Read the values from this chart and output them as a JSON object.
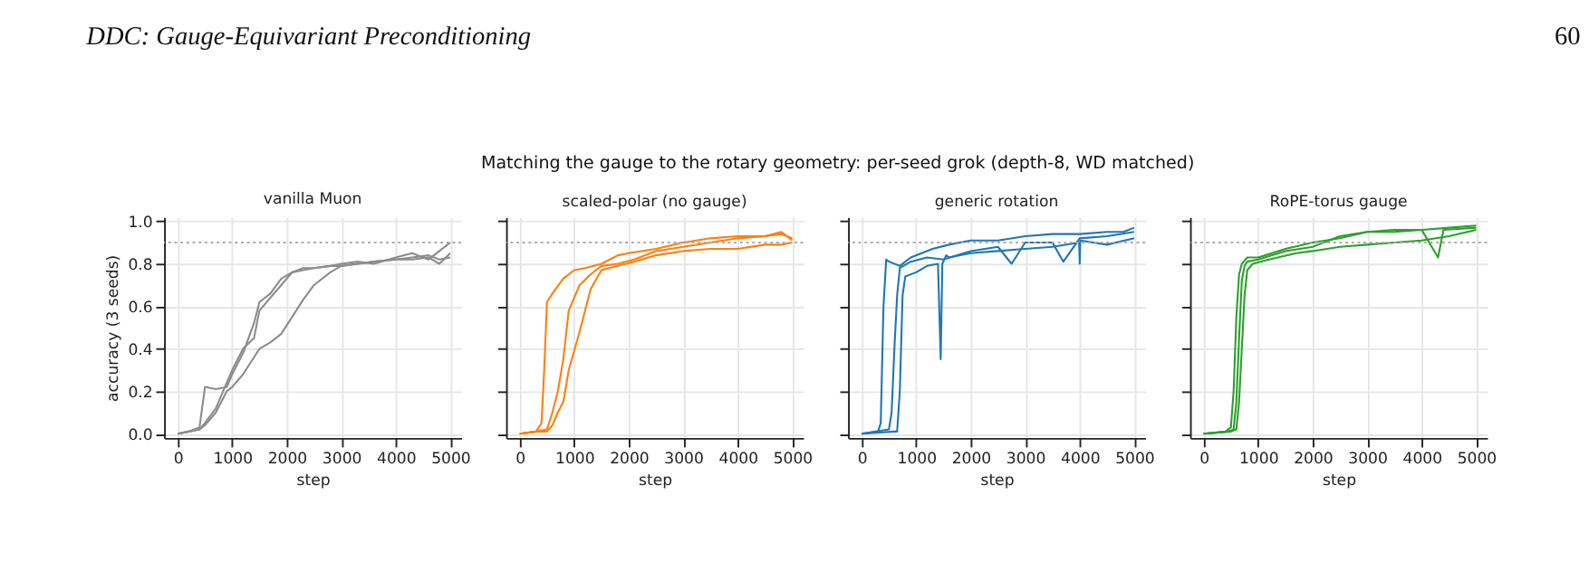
{
  "chart_data": [
    {
      "type": "line",
      "title": "vanilla Muon",
      "xlabel": "step",
      "ylabel": "accuracy (3 seeds)",
      "annotations": [
        "DDC: Gauge-Equivariant Preconditioning",
        "60",
        "Matching the gauge to the rotary geometry: per-seed grok (depth-8, WD matched)"
      ],
      "xlim": [
        -250,
        5200
      ],
      "xticks": [
        0,
        1000,
        2000,
        3000,
        4000,
        5000
      ],
      "ylim": [
        -0.02,
        1.02
      ],
      "yticks": [
        {
          "value": 0,
          "label": "0.0"
        },
        0.2,
        0.4,
        0.6,
        0.8,
        {
          "value": 1,
          "label": "1.0"
        }
      ],
      "grid": true,
      "line_style": "solid",
      "ref_lines": [
        {
          "axis": "y",
          "value": 0.9,
          "color": "#aaaaaa",
          "line_style": "dotted"
        }
      ],
      "series": [
        {
          "color": "#8c8c8c",
          "x": [
            0,
            200,
            400,
            500,
            700,
            900,
            1000,
            1200,
            1400,
            1500,
            1700,
            1900,
            2100,
            2300,
            2500,
            2800,
            3000,
            3300,
            3600,
            4000,
            4300,
            4600,
            4800,
            5000
          ],
          "values": [
            0,
            0.01,
            0.03,
            0.22,
            0.21,
            0.22,
            0.28,
            0.38,
            0.52,
            0.62,
            0.66,
            0.73,
            0.76,
            0.77,
            0.78,
            0.79,
            0.79,
            0.8,
            0.81,
            0.82,
            0.83,
            0.84,
            0.82,
            0.83
          ]
        },
        {
          "color": "#8c8c8c",
          "x": [
            0,
            200,
            400,
            500,
            700,
            900,
            1000,
            1200,
            1400,
            1500,
            1700,
            1900,
            2100,
            2300,
            2500,
            2800,
            3000,
            3300,
            3600,
            4000,
            4300,
            4600,
            4800,
            5000
          ],
          "values": [
            0,
            0.01,
            0.02,
            0.05,
            0.12,
            0.24,
            0.3,
            0.4,
            0.45,
            0.58,
            0.64,
            0.7,
            0.76,
            0.78,
            0.78,
            0.79,
            0.8,
            0.81,
            0.8,
            0.83,
            0.85,
            0.82,
            0.86,
            0.9
          ]
        },
        {
          "color": "#8c8c8c",
          "x": [
            0,
            200,
            400,
            500,
            700,
            900,
            1000,
            1200,
            1400,
            1500,
            1700,
            1900,
            2100,
            2300,
            2500,
            2800,
            3000,
            3300,
            3600,
            4000,
            4300,
            4600,
            4800,
            5000
          ],
          "values": [
            0,
            0.01,
            0.02,
            0.04,
            0.1,
            0.2,
            0.22,
            0.28,
            0.36,
            0.4,
            0.43,
            0.47,
            0.55,
            0.63,
            0.7,
            0.76,
            0.79,
            0.8,
            0.81,
            0.82,
            0.82,
            0.83,
            0.8,
            0.85
          ]
        }
      ]
    },
    {
      "type": "line",
      "title": "scaled-polar (no gauge)",
      "xlabel": "step",
      "tick_labels": "x",
      "xlim": [
        -250,
        5200
      ],
      "xticks": [
        0,
        1000,
        2000,
        3000,
        4000,
        5000
      ],
      "ylim": [
        -0.02,
        1.02
      ],
      "yticks": [
        0,
        0.2,
        0.4,
        0.6,
        0.8,
        1
      ],
      "grid": true,
      "line_style": "solid",
      "ref_lines": [
        {
          "axis": "y",
          "value": 0.9,
          "color": "#aaaaaa",
          "line_style": "dotted"
        }
      ],
      "series": [
        {
          "color": "#ff7f0e",
          "x": [
            0,
            300,
            400,
            450,
            500,
            600,
            800,
            1000,
            1200,
            1500,
            1800,
            2000,
            2500,
            3000,
            3500,
            4000,
            4500,
            4800,
            5000
          ],
          "values": [
            0,
            0.01,
            0.05,
            0.3,
            0.62,
            0.66,
            0.73,
            0.77,
            0.78,
            0.8,
            0.84,
            0.85,
            0.87,
            0.9,
            0.92,
            0.93,
            0.93,
            0.95,
            0.91
          ]
        },
        {
          "color": "#ff7f0e",
          "x": [
            0,
            300,
            500,
            600,
            700,
            800,
            900,
            1100,
            1300,
            1500,
            1800,
            2100,
            2500,
            3000,
            3500,
            4000,
            4500,
            4800,
            5000
          ],
          "values": [
            0,
            0.01,
            0.02,
            0.1,
            0.2,
            0.35,
            0.58,
            0.7,
            0.75,
            0.79,
            0.8,
            0.82,
            0.86,
            0.88,
            0.9,
            0.92,
            0.93,
            0.94,
            0.92
          ]
        },
        {
          "color": "#ff7f0e",
          "x": [
            0,
            300,
            500,
            600,
            700,
            800,
            900,
            1100,
            1300,
            1500,
            1800,
            2100,
            2500,
            3000,
            3500,
            4000,
            4500,
            4800,
            5000
          ],
          "values": [
            0,
            0.01,
            0.01,
            0.04,
            0.1,
            0.15,
            0.3,
            0.48,
            0.68,
            0.77,
            0.79,
            0.81,
            0.84,
            0.86,
            0.87,
            0.87,
            0.89,
            0.89,
            0.9
          ]
        }
      ]
    },
    {
      "type": "line",
      "title": "generic rotation",
      "xlabel": "step",
      "tick_labels": "x",
      "xlim": [
        -250,
        5200
      ],
      "xticks": [
        0,
        1000,
        2000,
        3000,
        4000,
        5000
      ],
      "ylim": [
        -0.02,
        1.02
      ],
      "yticks": [
        0,
        0.2,
        0.4,
        0.6,
        0.8,
        1
      ],
      "grid": true,
      "line_style": "solid",
      "ref_lines": [
        {
          "axis": "y",
          "value": 0.9,
          "color": "#aaaaaa",
          "line_style": "dotted"
        }
      ],
      "series": [
        {
          "color": "#1f77b4",
          "x": [
            0,
            300,
            350,
            400,
            450,
            500,
            700,
            900,
            1100,
            1300,
            1600,
            2000,
            2500,
            3000,
            3500,
            4000,
            4500,
            4800,
            5000
          ],
          "values": [
            0,
            0.01,
            0.05,
            0.6,
            0.82,
            0.81,
            0.79,
            0.83,
            0.85,
            0.87,
            0.89,
            0.91,
            0.91,
            0.93,
            0.94,
            0.94,
            0.95,
            0.95,
            0.97
          ]
        },
        {
          "color": "#1f77b4",
          "x": [
            0,
            500,
            550,
            600,
            650,
            700,
            900,
            1200,
            1500,
            2000,
            2500,
            2750,
            3000,
            3500,
            3700,
            4000,
            4500,
            5000
          ],
          "values": [
            0,
            0.02,
            0.1,
            0.4,
            0.65,
            0.78,
            0.81,
            0.83,
            0.82,
            0.86,
            0.88,
            0.8,
            0.9,
            0.9,
            0.81,
            0.92,
            0.93,
            0.95
          ]
        },
        {
          "color": "#1f77b4",
          "x": [
            0,
            600,
            650,
            700,
            750,
            800,
            1000,
            1200,
            1400,
            1450,
            1480,
            1550,
            1600,
            2000,
            2500,
            3000,
            3500,
            3990,
            4000,
            4010,
            4500,
            5000
          ],
          "values": [
            0,
            0.01,
            0.01,
            0.2,
            0.65,
            0.74,
            0.76,
            0.79,
            0.8,
            0.35,
            0.8,
            0.84,
            0.83,
            0.85,
            0.86,
            0.87,
            0.88,
            0.9,
            0.8,
            0.91,
            0.89,
            0.92
          ]
        }
      ]
    },
    {
      "type": "line",
      "title": "RoPE-torus gauge",
      "xlabel": "step",
      "tick_labels": "x",
      "xlim": [
        -250,
        5200
      ],
      "xticks": [
        0,
        1000,
        2000,
        3000,
        4000,
        5000
      ],
      "ylim": [
        -0.02,
        1.02
      ],
      "yticks": [
        0,
        0.2,
        0.4,
        0.6,
        0.8,
        1
      ],
      "grid": true,
      "line_style": "solid",
      "ref_lines": [
        {
          "axis": "y",
          "value": 0.9,
          "color": "#aaaaaa",
          "line_style": "dotted"
        }
      ],
      "series": [
        {
          "color": "#2ca02c",
          "x": [
            0,
            400,
            500,
            550,
            600,
            650,
            700,
            800,
            1000,
            1500,
            2000,
            2500,
            3000,
            3500,
            4000,
            4500,
            5000
          ],
          "values": [
            0,
            0.01,
            0.03,
            0.2,
            0.55,
            0.75,
            0.8,
            0.83,
            0.83,
            0.87,
            0.9,
            0.92,
            0.95,
            0.95,
            0.96,
            0.97,
            0.98
          ]
        },
        {
          "color": "#2ca02c",
          "x": [
            0,
            450,
            550,
            600,
            650,
            700,
            750,
            800,
            1000,
            1500,
            2000,
            2500,
            3000,
            3500,
            4000,
            4300,
            4400,
            5000
          ],
          "values": [
            0,
            0.01,
            0.02,
            0.15,
            0.45,
            0.72,
            0.79,
            0.81,
            0.82,
            0.86,
            0.88,
            0.93,
            0.95,
            0.96,
            0.96,
            0.83,
            0.96,
            0.97
          ]
        },
        {
          "color": "#2ca02c",
          "x": [
            0,
            500,
            600,
            650,
            700,
            750,
            800,
            900,
            1200,
            1700,
            2000,
            2500,
            3000,
            3500,
            4000,
            4500,
            5000
          ],
          "values": [
            0,
            0.01,
            0.02,
            0.15,
            0.4,
            0.65,
            0.77,
            0.8,
            0.82,
            0.85,
            0.86,
            0.88,
            0.89,
            0.9,
            0.91,
            0.93,
            0.96
          ]
        }
      ]
    }
  ]
}
